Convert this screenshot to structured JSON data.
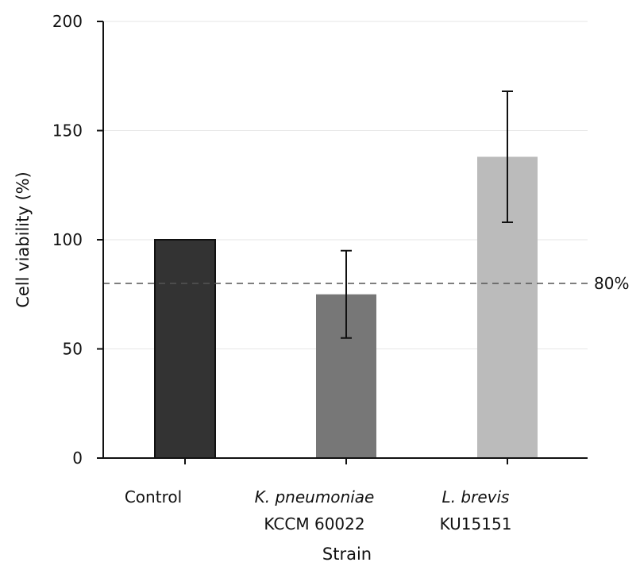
{
  "chart_data": {
    "type": "bar",
    "xlabel": "Strain",
    "ylabel": "Cell viability (%)",
    "ylim": [
      0,
      200
    ],
    "yticks": [
      0,
      50,
      100,
      150,
      200
    ],
    "grid": "horizontal",
    "categories": [
      {
        "name": "Control",
        "line1": "Control",
        "line2": "",
        "italic_line1": false
      },
      {
        "name": "K. pneumoniae KCCM 60022",
        "line1": "K. pneumoniae",
        "line2": "KCCM 60022",
        "italic_line1": true
      },
      {
        "name": "L. brevis KU15151",
        "line1": "L. brevis",
        "line2": "KU15151",
        "italic_line1": true
      }
    ],
    "values": [
      100,
      75,
      138
    ],
    "errors": [
      0,
      20,
      30
    ],
    "colors": [
      "#333333",
      "#777777",
      "#bbbbbb"
    ],
    "reference_line": {
      "value": 80,
      "label": "80%"
    }
  }
}
